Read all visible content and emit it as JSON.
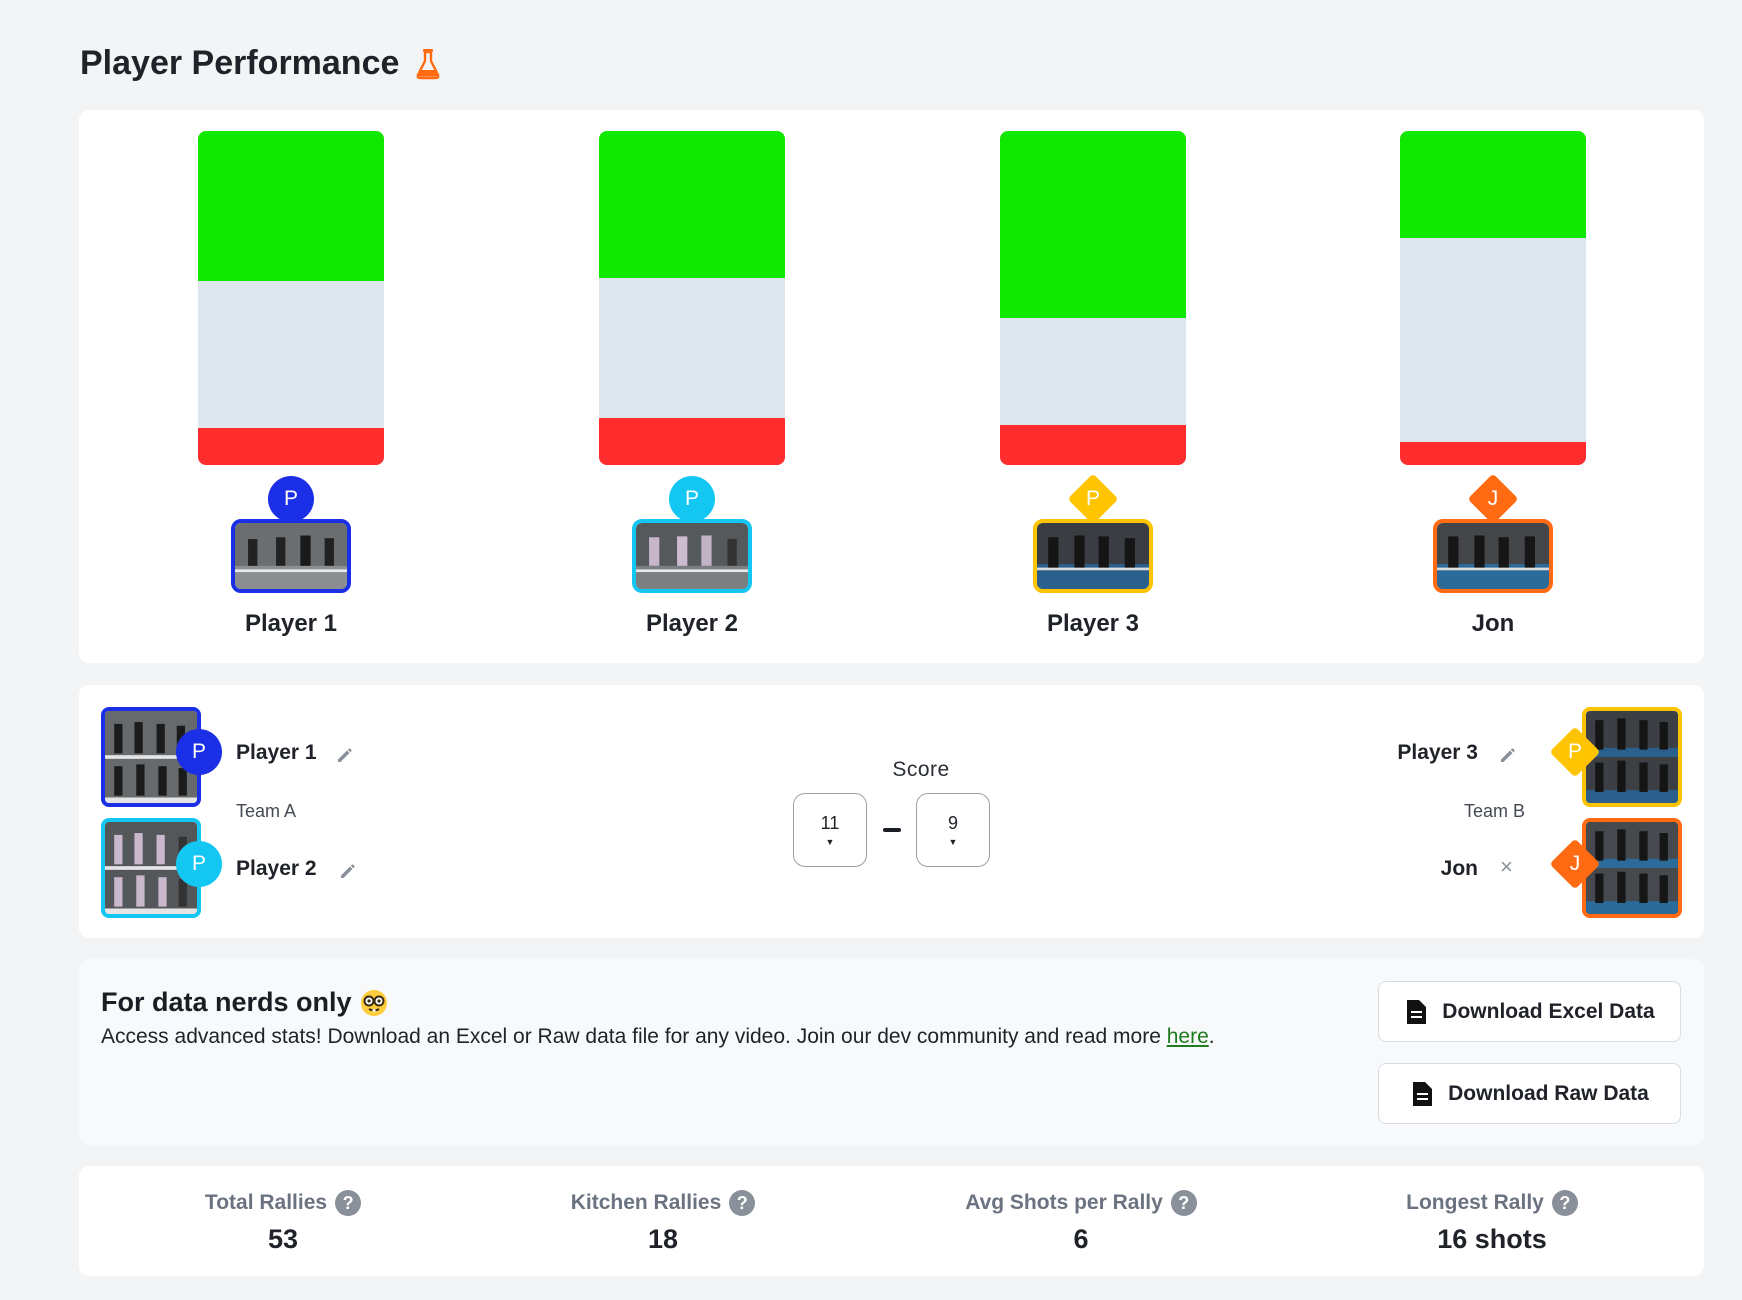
{
  "page": {
    "title": "Player Performance"
  },
  "bars": [
    {
      "name": "Player 1",
      "initial": "P",
      "color": "#1a2fe6",
      "shape": "circle",
      "green": 0.45,
      "red": 0.11
    },
    {
      "name": "Player 2",
      "initial": "P",
      "color": "#14c6f2",
      "shape": "circle",
      "green": 0.44,
      "red": 0.14
    },
    {
      "name": "Player 3",
      "initial": "P",
      "color": "#ffc400",
      "shape": "diamond",
      "green": 0.56,
      "red": 0.12
    },
    {
      "name": "Jon",
      "initial": "J",
      "color": "#ff6a13",
      "shape": "diamond",
      "green": 0.32,
      "red": 0.07
    }
  ],
  "teams": {
    "score_label": "Score",
    "team_a": {
      "label": "Team A",
      "players": [
        "Player 1",
        "Player 2"
      ]
    },
    "team_b": {
      "label": "Team B",
      "players": [
        "Player 3",
        "Jon"
      ]
    },
    "score_a": "11",
    "score_b": "9"
  },
  "nerds": {
    "title": "For data nerds only",
    "description": "Access advanced stats! Download an Excel or Raw data file for any video. Join our dev community and read more ",
    "link_text": "here",
    "period": ".",
    "excel_button": "Download Excel Data",
    "raw_button": "Download Raw Data"
  },
  "stats": [
    {
      "label": "Total Rallies",
      "value": "53"
    },
    {
      "label": "Kitchen Rallies",
      "value": "18"
    },
    {
      "label": "Avg Shots per Rally",
      "value": "6"
    },
    {
      "label": "Longest Rally",
      "value": "16 shots"
    }
  ]
}
